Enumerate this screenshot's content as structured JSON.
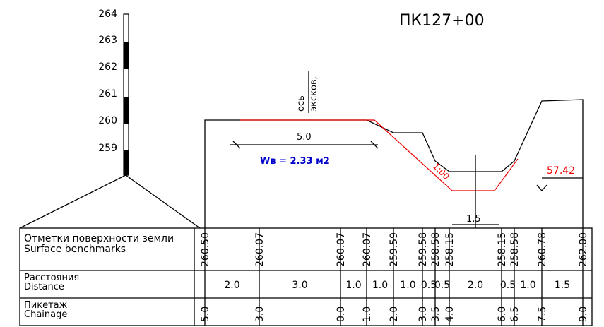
{
  "title": "ПК127+00",
  "scale": [
    "264",
    "263",
    "262",
    "261",
    "260",
    "259"
  ],
  "axis_note": [
    "ось",
    "эксков,"
  ],
  "dimensions": [
    "5.0",
    "1.5"
  ],
  "slope": "1:00",
  "area": "Wв = 2.33 м2",
  "level": "57.42",
  "table": {
    "rows": [
      {
        "label": [
          "Отметки поверхности земли",
          "Surface benchmarks"
        ],
        "values": [
          "260.50",
          "260.07",
          "260.07",
          "260.07",
          "259.59",
          "259.58",
          "258.58",
          "258.15",
          "258.15",
          "258.58",
          "260.78",
          "262.00"
        ]
      },
      {
        "label": [
          "Расстояния",
          "Distance"
        ],
        "values": [
          "2.0",
          "3.0",
          "1.0",
          "1.0",
          "1.0",
          "0.5",
          "0.5",
          "2.0",
          "0.5",
          "1.0",
          "1.5"
        ]
      },
      {
        "label": [
          "Пикетаж",
          "Chainage"
        ],
        "values": [
          "5.0",
          "3.0",
          "0.0",
          "1.0",
          "2.0",
          "3.0",
          "3.5",
          "4.0",
          "6.0",
          "6.5",
          "7.5",
          "9.0"
        ]
      }
    ]
  }
}
